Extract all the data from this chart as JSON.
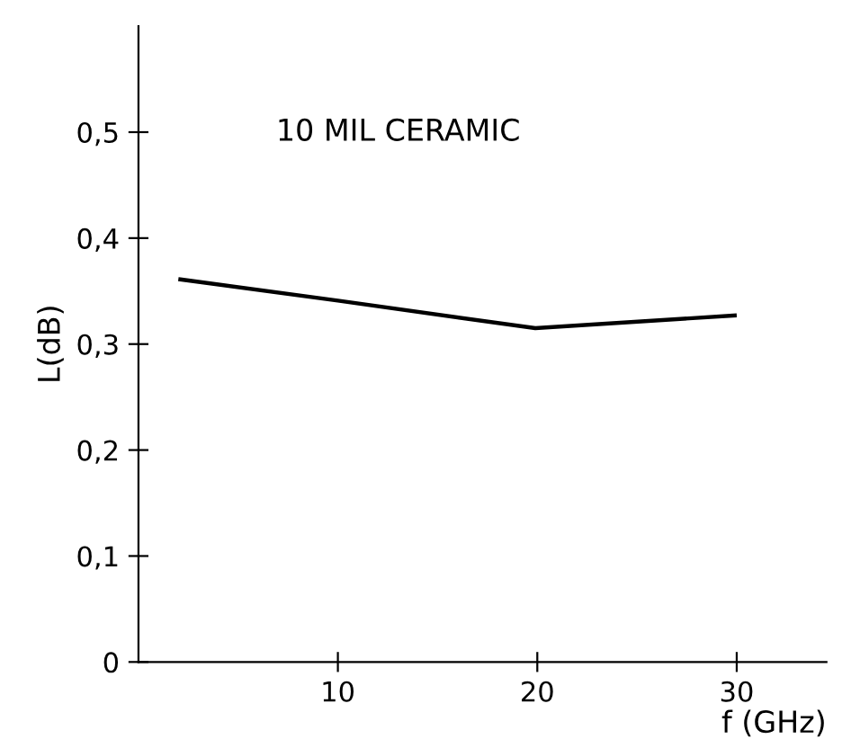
{
  "chart_data": {
    "type": "line",
    "xlabel": "f (GHz)",
    "ylabel": "L(dB)",
    "annotations": [
      "10 MIL CERAMIC"
    ],
    "x": [
      2.1,
      10,
      19.9,
      29.9
    ],
    "series": [
      {
        "color": "#000000",
        "values": [
          0.361,
          0.341,
          0.315,
          0.327
        ]
      }
    ],
    "xlim": [
      0,
      34.5
    ],
    "ylim": [
      0,
      0.6
    ],
    "xticks": [
      10,
      20,
      30
    ],
    "yticks": [
      0,
      {
        "value": 0.1,
        "label": "0,1"
      },
      {
        "value": 0.2,
        "label": "0,2"
      },
      {
        "value": 0.3,
        "label": "0,3"
      },
      {
        "value": 0.4,
        "label": "0,4"
      },
      {
        "value": 0.5,
        "label": "0,5"
      }
    ],
    "grid": false,
    "legend": false,
    "marker": "none",
    "line_style": "solid"
  }
}
